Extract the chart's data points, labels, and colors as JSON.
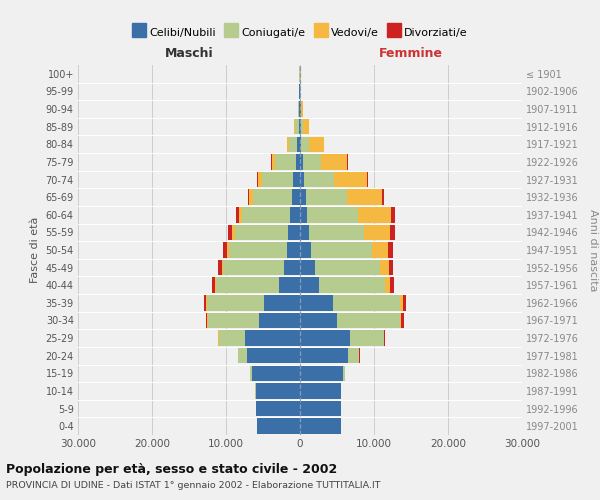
{
  "age_groups": [
    "0-4",
    "5-9",
    "10-14",
    "15-19",
    "20-24",
    "25-29",
    "30-34",
    "35-39",
    "40-44",
    "45-49",
    "50-54",
    "55-59",
    "60-64",
    "65-69",
    "70-74",
    "75-79",
    "80-84",
    "85-89",
    "90-94",
    "95-99",
    "100+"
  ],
  "birth_years": [
    "1997-2001",
    "1992-1996",
    "1987-1991",
    "1982-1986",
    "1977-1981",
    "1972-1976",
    "1967-1971",
    "1962-1966",
    "1957-1961",
    "1952-1956",
    "1947-1951",
    "1942-1946",
    "1937-1941",
    "1932-1936",
    "1927-1931",
    "1922-1926",
    "1917-1921",
    "1912-1916",
    "1907-1911",
    "1902-1906",
    "≤ 1901"
  ],
  "maschi": {
    "celibi": [
      5800,
      5900,
      6000,
      6500,
      7200,
      7500,
      5500,
      4800,
      2800,
      2200,
      1800,
      1600,
      1300,
      1100,
      900,
      600,
      350,
      200,
      120,
      80,
      50
    ],
    "coniugati": [
      5,
      10,
      50,
      200,
      1200,
      3500,
      7000,
      7800,
      8500,
      8200,
      7800,
      7200,
      6500,
      5200,
      4200,
      2800,
      1200,
      500,
      180,
      40,
      20
    ],
    "vedovi": [
      1,
      1,
      2,
      5,
      10,
      20,
      50,
      100,
      150,
      200,
      300,
      400,
      500,
      600,
      600,
      450,
      200,
      80,
      30,
      10,
      5
    ],
    "divorziati": [
      1,
      2,
      5,
      10,
      30,
      80,
      200,
      300,
      400,
      450,
      500,
      500,
      350,
      150,
      100,
      50,
      20,
      10,
      5,
      3,
      2
    ]
  },
  "femmine": {
    "nubili": [
      5500,
      5500,
      5500,
      5800,
      6500,
      6800,
      5000,
      4500,
      2500,
      2000,
      1500,
      1200,
      1000,
      800,
      600,
      400,
      200,
      150,
      100,
      60,
      50
    ],
    "coniugate": [
      5,
      10,
      60,
      300,
      1500,
      4500,
      8500,
      9000,
      9000,
      8800,
      8200,
      7500,
      6800,
      5500,
      4000,
      2500,
      1000,
      300,
      100,
      20,
      10
    ],
    "vedove": [
      1,
      2,
      5,
      10,
      30,
      80,
      200,
      400,
      700,
      1200,
      2200,
      3500,
      4500,
      4800,
      4500,
      3500,
      2000,
      700,
      200,
      30,
      10
    ],
    "divorziate": [
      1,
      2,
      5,
      15,
      40,
      100,
      300,
      400,
      500,
      600,
      700,
      700,
      500,
      200,
      100,
      50,
      20,
      10,
      5,
      3,
      2
    ]
  },
  "color_celibe": "#3a6fa8",
  "color_coniugato": "#b5cc8e",
  "color_vedovo": "#f5b942",
  "color_divorziato": "#cc2222",
  "title": "Popolazione per età, sesso e stato civile - 2002",
  "subtitle": "PROVINCIA DI UDINE - Dati ISTAT 1° gennaio 2002 - Elaborazione TUTTITALIA.IT",
  "xlabel_left": "Maschi",
  "xlabel_right": "Femmine",
  "ylabel_left": "Fasce di età",
  "ylabel_right": "Anni di nascita",
  "xlim": 30000,
  "xticks": [
    -30000,
    -20000,
    -10000,
    0,
    10000,
    20000,
    30000
  ],
  "xticklabels": [
    "30.000",
    "20.000",
    "10.000",
    "0",
    "10.000",
    "20.000",
    "30.000"
  ],
  "bg_color": "#f0f0f0",
  "grid_color": "#cccccc",
  "legend_labels": [
    "Celibi/Nubili",
    "Coniugati/e",
    "Vedovi/e",
    "Divorziati/e"
  ]
}
